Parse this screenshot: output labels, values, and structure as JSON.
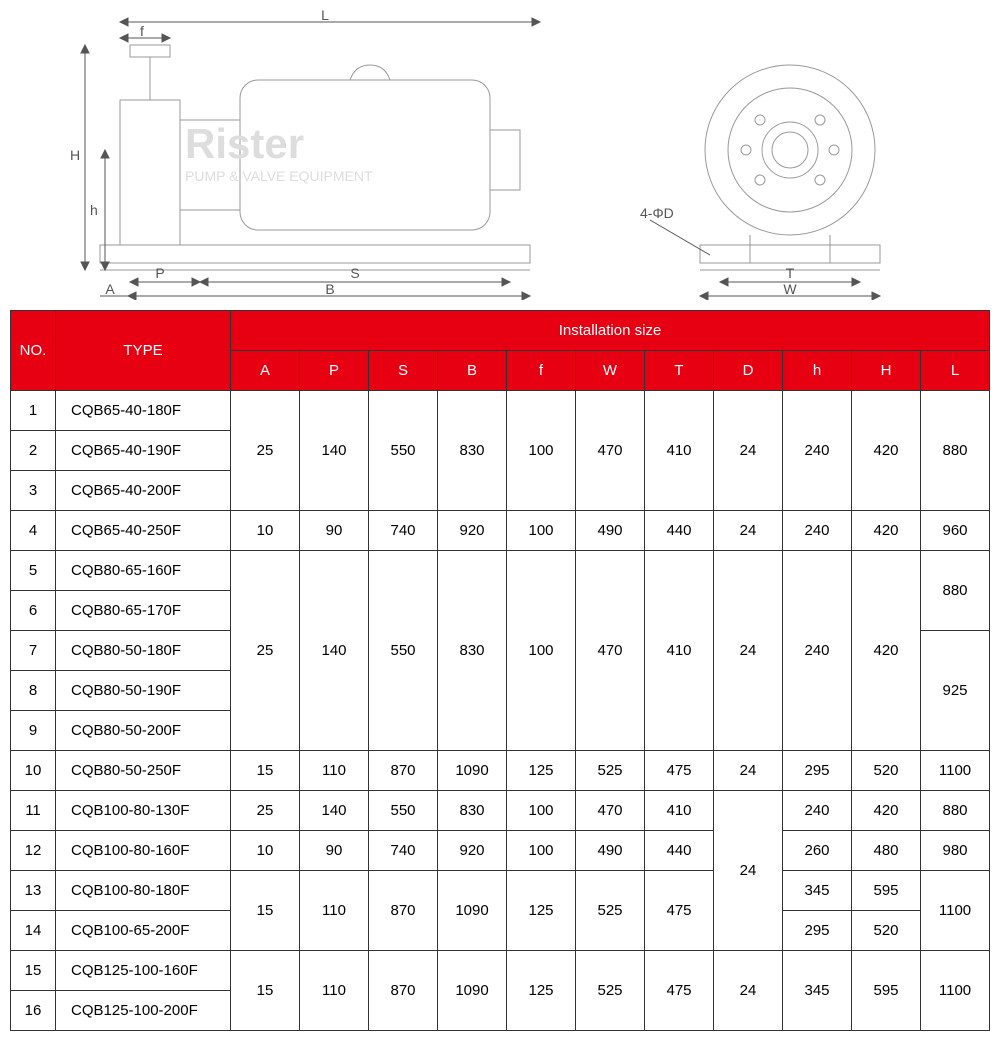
{
  "diagram": {
    "labels": [
      "L",
      "f",
      "H",
      "h",
      "P",
      "S",
      "A",
      "B",
      "4-ΦD",
      "T",
      "W"
    ],
    "stroke_color": "#555555",
    "stroke_width": 1,
    "font_size": 14,
    "watermark_text": "Rister",
    "watermark_sub": "PUMP & VALVE EQUIPMENT"
  },
  "table": {
    "header_bg": "#e60012",
    "header_fg": "#ffffff",
    "border_color": "#333333",
    "font_size": 15,
    "title_no": "NO.",
    "title_type": "TYPE",
    "title_install": "Installation size",
    "dim_headers": [
      "A",
      "P",
      "S",
      "B",
      "f",
      "W",
      "T",
      "D",
      "h",
      "H",
      "L"
    ],
    "groups": [
      {
        "rows": [
          {
            "no": "1",
            "type": "CQB65-40-180F"
          },
          {
            "no": "2",
            "type": "CQB65-40-190F"
          },
          {
            "no": "3",
            "type": "CQB65-40-200F"
          }
        ],
        "vals": {
          "A": "25",
          "P": "140",
          "S": "550",
          "B": "830",
          "f": "100",
          "W": "470",
          "T": "410",
          "D": "24",
          "h": "240",
          "H": "420",
          "L": "880"
        }
      },
      {
        "rows": [
          {
            "no": "4",
            "type": "CQB65-40-250F"
          }
        ],
        "vals": {
          "A": "10",
          "P": "90",
          "S": "740",
          "B": "920",
          "f": "100",
          "W": "490",
          "T": "440",
          "D": "24",
          "h": "240",
          "H": "420",
          "L": "960"
        }
      },
      {
        "rows": [
          {
            "no": "5",
            "type": "CQB80-65-160F"
          },
          {
            "no": "6",
            "type": "CQB80-65-170F"
          },
          {
            "no": "7",
            "type": "CQB80-50-180F"
          },
          {
            "no": "8",
            "type": "CQB80-50-190F"
          },
          {
            "no": "9",
            "type": "CQB80-50-200F"
          }
        ],
        "vals": {
          "A": "25",
          "P": "140",
          "S": "550",
          "B": "830",
          "f": "100",
          "W": "470",
          "T": "410",
          "D": "24",
          "h": "240",
          "H": "420"
        },
        "L_split": [
          {
            "span": 2,
            "val": "880"
          },
          {
            "span": 3,
            "val": "925"
          }
        ]
      },
      {
        "rows": [
          {
            "no": "10",
            "type": "CQB80-50-250F"
          }
        ],
        "vals": {
          "A": "15",
          "P": "110",
          "S": "870",
          "B": "1090",
          "f": "125",
          "W": "525",
          "T": "475",
          "D": "24",
          "h": "295",
          "H": "520",
          "L": "1100"
        }
      },
      {
        "rows": [
          {
            "no": "11",
            "type": "CQB100-80-130F"
          }
        ],
        "vals": {
          "A": "25",
          "P": "140",
          "S": "550",
          "B": "830",
          "f": "100",
          "W": "470",
          "T": "410",
          "h": "240",
          "H": "420",
          "L": "880"
        },
        "D_group": {
          "start": true,
          "span": 4,
          "val": "24"
        }
      },
      {
        "rows": [
          {
            "no": "12",
            "type": "CQB100-80-160F"
          }
        ],
        "vals": {
          "A": "10",
          "P": "90",
          "S": "740",
          "B": "920",
          "f": "100",
          "W": "490",
          "T": "440",
          "h": "260",
          "H": "480",
          "L": "980"
        }
      },
      {
        "rows": [
          {
            "no": "13",
            "type": "CQB100-80-180F"
          },
          {
            "no": "14",
            "type": "CQB100-65-200F"
          }
        ],
        "vals": {
          "A": "15",
          "P": "110",
          "S": "870",
          "B": "1090",
          "f": "125",
          "W": "525",
          "T": "475",
          "L": "1100"
        },
        "hH_split": [
          {
            "h": "345",
            "H": "595"
          },
          {
            "h": "295",
            "H": "520"
          }
        ]
      },
      {
        "rows": [
          {
            "no": "15",
            "type": "CQB125-100-160F"
          },
          {
            "no": "16",
            "type": "CQB125-100-200F"
          }
        ],
        "vals": {
          "A": "15",
          "P": "110",
          "S": "870",
          "B": "1090",
          "f": "125",
          "W": "525",
          "T": "475",
          "D": "24",
          "h": "345",
          "H": "595",
          "L": "1100"
        }
      }
    ]
  }
}
